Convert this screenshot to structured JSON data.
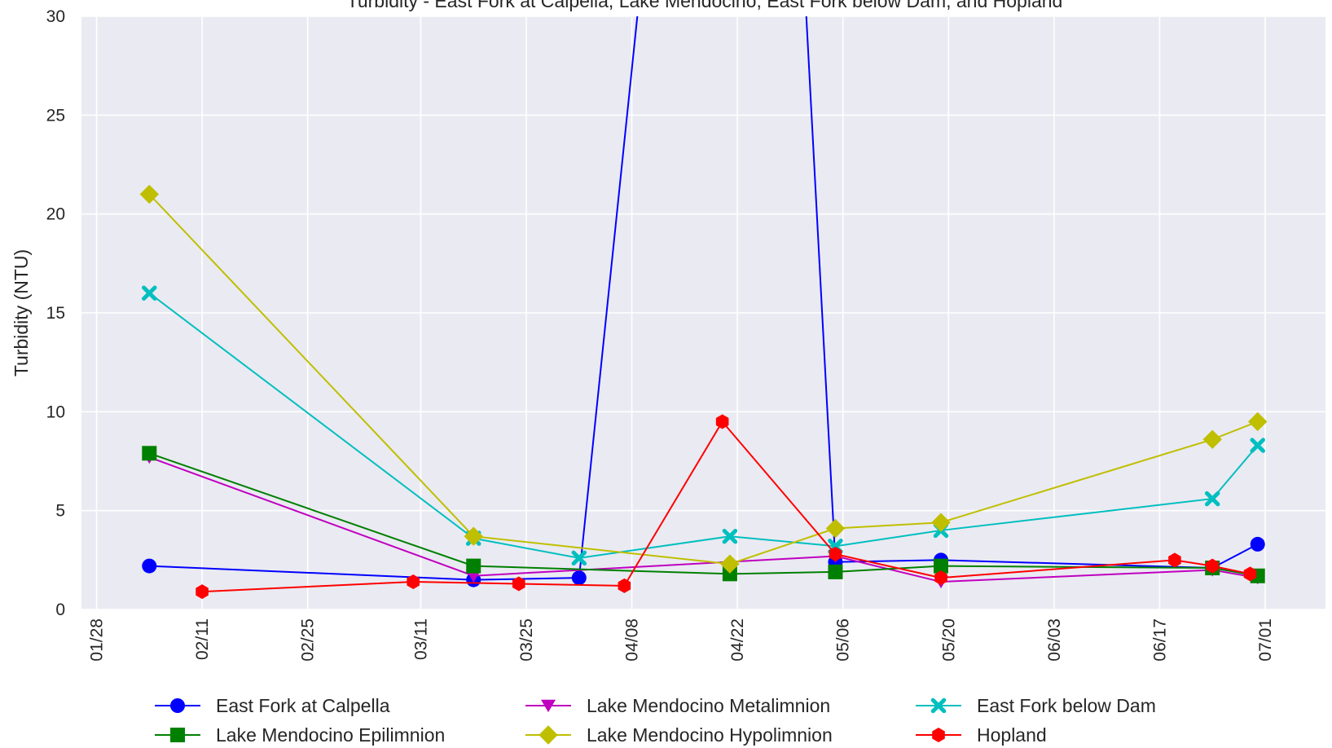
{
  "chart_data": {
    "type": "line",
    "title": "Turbidity - East Fork at Calpella, Lake Mendocino, East Fork below Dam, and Hopland",
    "xlabel": "",
    "ylabel": "Turbidity (NTU)",
    "xlim": [
      "01/26",
      "07/09"
    ],
    "ylim": [
      0,
      30
    ],
    "x_ticks": [
      "01/28",
      "02/11",
      "02/25",
      "03/11",
      "03/25",
      "04/08",
      "04/22",
      "05/06",
      "05/20",
      "06/03",
      "06/17",
      "07/01"
    ],
    "y_ticks": [
      0,
      5,
      10,
      15,
      20,
      25,
      30
    ],
    "grid": true,
    "legend_position": "bottom",
    "background": "#eaeaf2",
    "series": [
      {
        "name": "East Fork at Calpella",
        "color": "#0000ff",
        "marker": "circle",
        "points": [
          [
            "02/04",
            2.2
          ],
          [
            "03/18",
            1.5
          ],
          [
            "04/01",
            1.6
          ],
          [
            "04/09",
            31.0
          ],
          [
            "05/01",
            31.0
          ],
          [
            "05/05",
            2.4
          ],
          [
            "05/19",
            2.5
          ],
          [
            "06/24",
            2.1
          ],
          [
            "06/30",
            3.3
          ]
        ]
      },
      {
        "name": "Lake Mendocino Metalimnion",
        "color": "#bf00bf",
        "marker": "triangle-down",
        "points": [
          [
            "02/04",
            7.7
          ],
          [
            "03/18",
            1.7
          ],
          [
            "05/05",
            2.7
          ],
          [
            "05/19",
            1.4
          ],
          [
            "06/24",
            2.0
          ],
          [
            "06/30",
            1.6
          ]
        ]
      },
      {
        "name": "East Fork below Dam",
        "color": "#00bfbf",
        "marker": "x",
        "points": [
          [
            "02/04",
            16.0
          ],
          [
            "03/18",
            3.6
          ],
          [
            "04/01",
            2.6
          ],
          [
            "04/21",
            3.7
          ],
          [
            "05/05",
            3.2
          ],
          [
            "05/19",
            4.0
          ],
          [
            "06/24",
            5.6
          ],
          [
            "06/30",
            8.3
          ]
        ]
      },
      {
        "name": "Lake Mendocino Epilimnion",
        "color": "#008000",
        "marker": "square",
        "points": [
          [
            "02/04",
            7.9
          ],
          [
            "03/18",
            2.2
          ],
          [
            "04/21",
            1.8
          ],
          [
            "05/05",
            1.9
          ],
          [
            "05/19",
            2.2
          ],
          [
            "06/24",
            2.1
          ],
          [
            "06/30",
            1.7
          ]
        ]
      },
      {
        "name": "Lake Mendocino Hypolimnion",
        "color": "#bfbf00",
        "marker": "diamond",
        "points": [
          [
            "02/04",
            21.0
          ],
          [
            "03/18",
            3.7
          ],
          [
            "04/21",
            2.3
          ],
          [
            "05/05",
            4.1
          ],
          [
            "05/19",
            4.4
          ],
          [
            "06/24",
            8.6
          ],
          [
            "06/30",
            9.5
          ]
        ]
      },
      {
        "name": "Hopland",
        "color": "#ff0000",
        "marker": "hexagon",
        "points": [
          [
            "02/11",
            0.9
          ],
          [
            "03/10",
            1.4
          ],
          [
            "03/24",
            1.3
          ],
          [
            "04/07",
            1.2
          ],
          [
            "04/20",
            9.5
          ],
          [
            "05/05",
            2.8
          ],
          [
            "05/19",
            1.6
          ],
          [
            "06/19",
            2.5
          ],
          [
            "06/24",
            2.2
          ],
          [
            "06/29",
            1.8
          ]
        ]
      }
    ]
  }
}
